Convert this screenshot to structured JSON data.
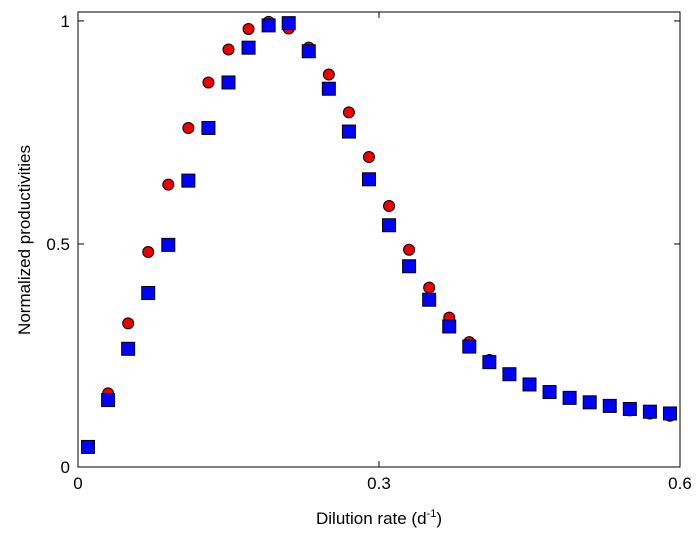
{
  "chart_data": {
    "type": "scatter",
    "xlabel": "Dilution rate (d",
    "xlabel_superscript": "-1",
    "xlabel_suffix": ")",
    "ylabel": "Normalized productivities",
    "xlim": [
      0,
      0.6
    ],
    "ylim": [
      0,
      1.02
    ],
    "x_ticks": [
      0,
      0.3,
      0.6
    ],
    "x_tick_labels": [
      "0",
      "0.3",
      "0.6"
    ],
    "y_ticks": [
      0,
      0.5,
      1
    ],
    "y_tick_labels": [
      "0",
      "0.5",
      "1"
    ],
    "grid": false,
    "series": [
      {
        "marker": "circle",
        "color": "#ee0000",
        "x": [
          0.03,
          0.05,
          0.07,
          0.09,
          0.11,
          0.13,
          0.15,
          0.17,
          0.19,
          0.21,
          0.23,
          0.25,
          0.27,
          0.29,
          0.31,
          0.33,
          0.35,
          0.37,
          0.39,
          0.41,
          0.43,
          0.45,
          0.47,
          0.49,
          0.51,
          0.53,
          0.55,
          0.57,
          0.59
        ],
        "y": [
          0.165,
          0.322,
          0.482,
          0.633,
          0.76,
          0.862,
          0.936,
          0.982,
          0.998,
          0.983,
          0.94,
          0.88,
          0.795,
          0.695,
          0.585,
          0.487,
          0.402,
          0.335,
          0.28,
          0.24,
          0.21,
          0.185,
          0.168,
          0.155,
          0.145,
          0.135,
          0.127,
          0.12,
          0.115
        ]
      },
      {
        "marker": "square",
        "color": "#0000ff",
        "x": [
          0.01,
          0.03,
          0.05,
          0.07,
          0.09,
          0.11,
          0.13,
          0.15,
          0.17,
          0.19,
          0.21,
          0.23,
          0.25,
          0.27,
          0.29,
          0.31,
          0.33,
          0.35,
          0.37,
          0.39,
          0.41,
          0.43,
          0.45,
          0.47,
          0.49,
          0.51,
          0.53,
          0.55,
          0.57,
          0.59
        ],
        "y": [
          0.045,
          0.15,
          0.265,
          0.39,
          0.498,
          0.642,
          0.76,
          0.862,
          0.94,
          0.99,
          0.995,
          0.932,
          0.848,
          0.752,
          0.645,
          0.542,
          0.45,
          0.375,
          0.315,
          0.27,
          0.235,
          0.208,
          0.185,
          0.168,
          0.155,
          0.145,
          0.137,
          0.13,
          0.124,
          0.12
        ]
      }
    ]
  }
}
